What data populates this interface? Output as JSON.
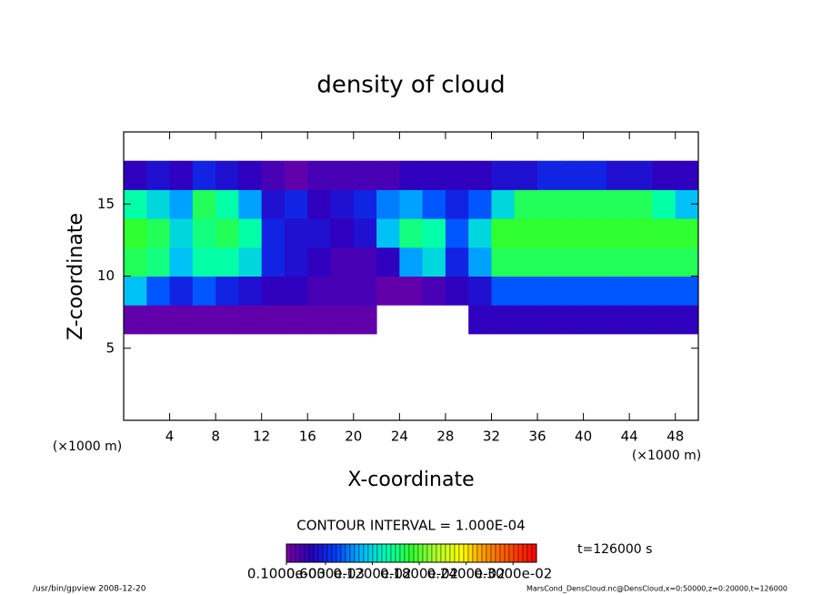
{
  "chart_data": {
    "type": "heatmap",
    "title": "density of cloud",
    "x_label": "X-coordinate",
    "y_label": "Z-coordinate",
    "x_unit": "(×1000 m)",
    "y_unit": "(×1000 m)",
    "xlim": [
      0,
      50
    ],
    "xticks": [
      4,
      8,
      12,
      16,
      20,
      24,
      28,
      32,
      36,
      40,
      44,
      48
    ],
    "ylim": [
      0,
      20
    ],
    "yticks": [
      5,
      10,
      15
    ],
    "x": [
      1,
      3,
      5,
      7,
      9,
      11,
      13,
      15,
      17,
      19,
      21,
      23,
      25,
      27,
      29,
      31,
      33,
      35,
      37,
      39,
      41,
      43,
      45,
      47,
      49
    ],
    "y": [
      1,
      3,
      5,
      7,
      9,
      11,
      13,
      15,
      17,
      19
    ],
    "values": [
      [
        null,
        null,
        null,
        null,
        null,
        null,
        null,
        null,
        null,
        null,
        null,
        null,
        null,
        null,
        null,
        null,
        null,
        null,
        null,
        null,
        null,
        null,
        null,
        null,
        null
      ],
      [
        null,
        null,
        null,
        null,
        null,
        null,
        null,
        null,
        null,
        null,
        null,
        null,
        null,
        null,
        null,
        null,
        null,
        null,
        null,
        null,
        null,
        null,
        null,
        null,
        null
      ],
      [
        null,
        null,
        null,
        null,
        null,
        null,
        null,
        null,
        null,
        null,
        null,
        null,
        null,
        null,
        null,
        null,
        null,
        null,
        null,
        null,
        null,
        null,
        null,
        null,
        null
      ],
      [
        0.0002,
        0.0002,
        0.0002,
        0.0002,
        0.0002,
        0.0002,
        0.0002,
        0.0002,
        0.0002,
        0.0002,
        0.0002,
        null,
        null,
        null,
        null,
        0.0004,
        0.0004,
        0.0004,
        0.0004,
        0.0004,
        0.0004,
        0.0004,
        0.0004,
        0.0004,
        0.0004
      ],
      [
        0.0011,
        0.0008,
        0.0006,
        0.0008,
        0.0006,
        0.0005,
        0.0004,
        0.0004,
        0.0003,
        0.0003,
        0.0003,
        0.0002,
        0.0002,
        0.0003,
        0.0004,
        0.0005,
        0.0008,
        0.0008,
        0.0008,
        0.0008,
        0.0008,
        0.0008,
        0.0008,
        0.0008,
        0.0008
      ],
      [
        0.0016,
        0.0015,
        0.0011,
        0.0014,
        0.0014,
        0.0012,
        0.0006,
        0.0005,
        0.0004,
        0.0003,
        0.0003,
        0.0004,
        0.001,
        0.0012,
        0.0006,
        0.001,
        0.0016,
        0.0016,
        0.0016,
        0.0016,
        0.0016,
        0.0016,
        0.0016,
        0.0016,
        0.0016
      ],
      [
        0.0017,
        0.0016,
        0.0012,
        0.0015,
        0.0016,
        0.0014,
        0.0006,
        0.0005,
        0.0005,
        0.0004,
        0.0005,
        0.0011,
        0.0015,
        0.0014,
        0.0008,
        0.0012,
        0.0017,
        0.0017,
        0.0017,
        0.0017,
        0.0017,
        0.0017,
        0.0017,
        0.0017,
        0.0017
      ],
      [
        0.0014,
        0.0012,
        0.001,
        0.0016,
        0.0014,
        0.001,
        0.0005,
        0.0006,
        0.0004,
        0.0005,
        0.0006,
        0.0009,
        0.001,
        0.0008,
        0.0006,
        0.0008,
        0.0012,
        0.0016,
        0.0016,
        0.0016,
        0.0016,
        0.0016,
        0.0016,
        0.0014,
        0.0011
      ],
      [
        0.0004,
        0.0005,
        0.0004,
        0.0006,
        0.0005,
        0.0004,
        0.0003,
        0.0002,
        0.0003,
        0.0003,
        0.0003,
        0.0003,
        0.0004,
        0.0004,
        0.0004,
        0.0004,
        0.0005,
        0.0005,
        0.0006,
        0.0006,
        0.0006,
        0.0005,
        0.0005,
        0.0004,
        0.0004
      ],
      [
        null,
        null,
        null,
        null,
        null,
        null,
        null,
        null,
        null,
        null,
        null,
        null,
        null,
        null,
        null,
        null,
        null,
        null,
        null,
        null,
        null,
        null,
        null,
        null,
        null
      ]
    ],
    "colorbar": {
      "lim": [
        0.0001,
        0.0033
      ],
      "ticks": [
        {
          "value": 0.0001,
          "label": "0.1000e-03"
        },
        {
          "value": 0.0006,
          "label": "0.6000e-03"
        },
        {
          "value": 0.0012,
          "label": "0.1200e-02"
        },
        {
          "value": 0.0018,
          "label": "0.1800e-02"
        },
        {
          "value": 0.0024,
          "label": "0.2400e-02"
        },
        {
          "value": 0.003,
          "label": "0.3000e-02"
        }
      ]
    },
    "contour_interval": "CONTOUR INTERVAL = 1.000E-04",
    "time_label": "t=126000 s",
    "footer_left": "/usr/bin/gpview   2008-12-20",
    "footer_right": "MarsCond_DensCloud.nc@DensCloud,x=0:50000,z=0:20000,t=126000"
  }
}
